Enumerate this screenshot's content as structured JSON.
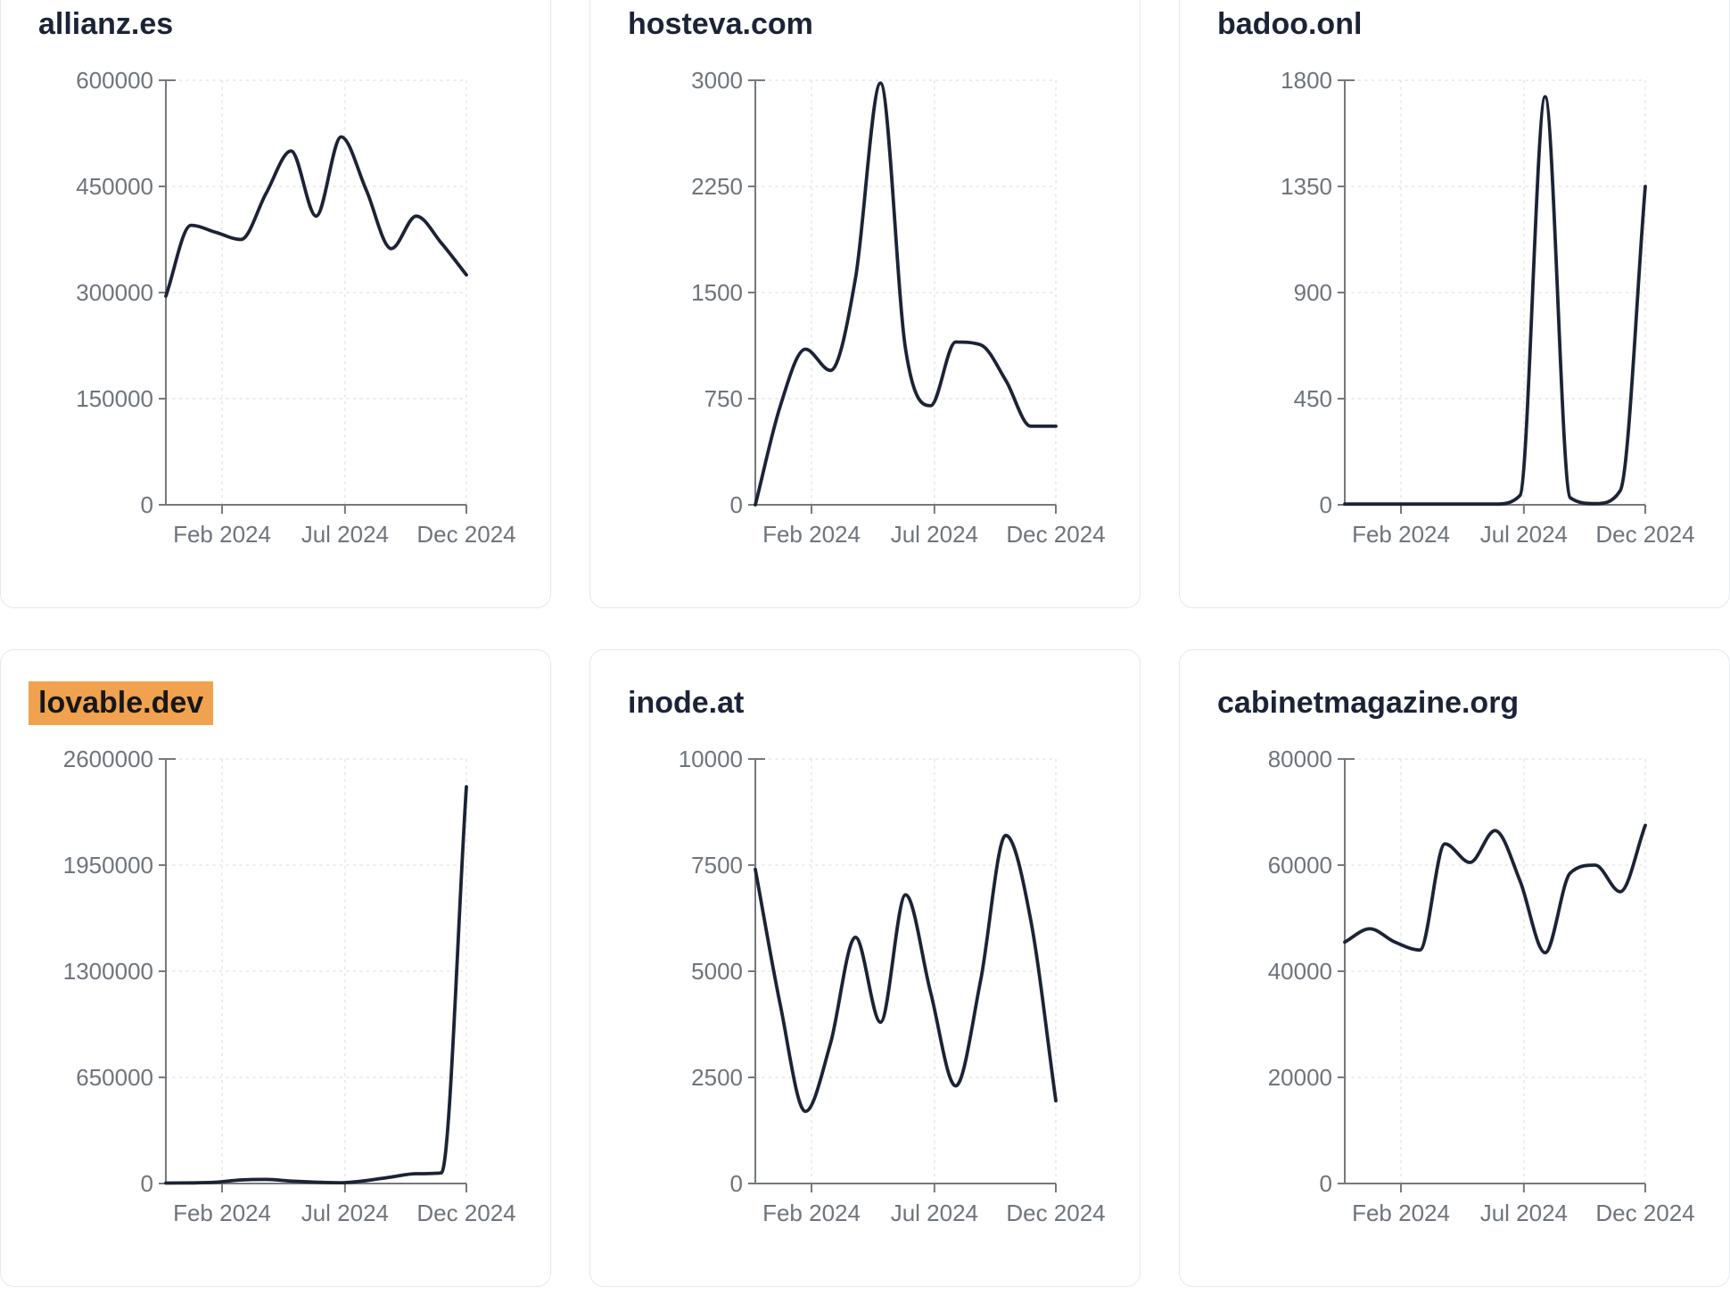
{
  "colors": {
    "line": "#1d2336",
    "title": "#1b2337",
    "tick": "#6e747b",
    "axis": "#75797e",
    "grid": "#e5e5e8",
    "border": "#e3e8f1",
    "hl": "#f0a24e",
    "bg": "#ffffff"
  },
  "chart_data": [
    {
      "type": "line",
      "title": "allianz.es",
      "highlighted": false,
      "ylim": [
        0,
        600000
      ],
      "y_ticks": [
        0,
        150000,
        300000,
        450000,
        600000
      ],
      "x_tick_labels": [
        "Feb 2024",
        "Jul 2024",
        "Dec 2024"
      ],
      "x_tick_positions": [
        0.187,
        0.596,
        1.0
      ],
      "values": [
        295000,
        395000,
        385000,
        375000,
        440000,
        500000,
        408000,
        520000,
        445000,
        362000,
        408000,
        370000,
        325000
      ],
      "grid": true,
      "legend": false
    },
    {
      "type": "line",
      "title": "hosteva.com",
      "highlighted": false,
      "ylim": [
        0,
        3000
      ],
      "y_ticks": [
        0,
        750,
        1500,
        2250,
        3000
      ],
      "x_tick_labels": [
        "Feb 2024",
        "Jul 2024",
        "Dec 2024"
      ],
      "x_tick_positions": [
        0.187,
        0.596,
        1.0
      ],
      "values": [
        0,
        700,
        1100,
        950,
        1600,
        2980,
        1100,
        700,
        1150,
        1130,
        880,
        555,
        555
      ],
      "grid": true,
      "legend": false
    },
    {
      "type": "line",
      "title": "badoo.onl",
      "highlighted": false,
      "ylim": [
        0,
        1800
      ],
      "y_ticks": [
        0,
        450,
        900,
        1350,
        1800
      ],
      "x_tick_labels": [
        "Feb 2024",
        "Jul 2024",
        "Dec 2024"
      ],
      "x_tick_positions": [
        0.187,
        0.596,
        1.0
      ],
      "values": [
        3,
        3,
        3,
        3,
        3,
        3,
        3,
        40,
        1730,
        30,
        5,
        60,
        1350
      ],
      "grid": true,
      "legend": false
    },
    {
      "type": "line",
      "title": "lovable.dev",
      "highlighted": true,
      "ylim": [
        0,
        2600000
      ],
      "y_ticks": [
        0,
        650000,
        1300000,
        1950000,
        2600000
      ],
      "x_tick_labels": [
        "Feb 2024",
        "Jul 2024",
        "Dec 2024"
      ],
      "x_tick_positions": [
        0.187,
        0.596,
        1.0
      ],
      "values": [
        3000,
        4000,
        8000,
        22000,
        25000,
        15000,
        8000,
        5000,
        18000,
        40000,
        60000,
        65000,
        2430000
      ],
      "grid": true,
      "legend": false
    },
    {
      "type": "line",
      "title": "inode.at",
      "highlighted": false,
      "ylim": [
        0,
        10000
      ],
      "y_ticks": [
        0,
        2500,
        5000,
        7500,
        10000
      ],
      "x_tick_labels": [
        "Feb 2024",
        "Jul 2024",
        "Dec 2024"
      ],
      "x_tick_positions": [
        0.187,
        0.596,
        1.0
      ],
      "values": [
        7400,
        4200,
        1700,
        3300,
        5800,
        3800,
        6800,
        4500,
        2300,
        4800,
        8200,
        6200,
        1950
      ],
      "grid": true,
      "legend": false
    },
    {
      "type": "line",
      "title": "cabinetmagazine.org",
      "highlighted": false,
      "ylim": [
        0,
        80000
      ],
      "y_ticks": [
        0,
        20000,
        40000,
        60000,
        80000
      ],
      "x_tick_labels": [
        "Feb 2024",
        "Jul 2024",
        "Dec 2024"
      ],
      "x_tick_positions": [
        0.187,
        0.596,
        1.0
      ],
      "values": [
        45500,
        48000,
        45500,
        44000,
        64000,
        60500,
        66500,
        57000,
        43500,
        58500,
        60000,
        55000,
        67500
      ],
      "grid": true,
      "legend": false
    }
  ]
}
